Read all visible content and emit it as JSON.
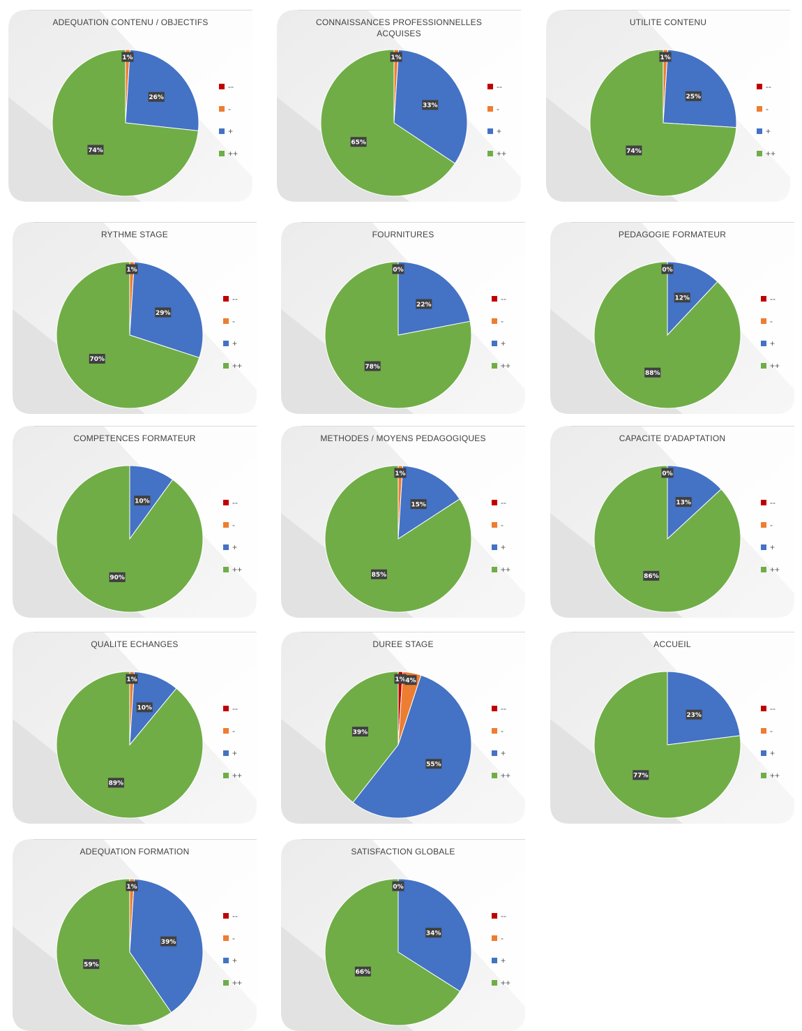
{
  "legend_entries": [
    "--",
    "-",
    "+",
    "++"
  ],
  "colors": {
    "--": "#c00000",
    "-": "#ed7d31",
    "+": "#4472c4",
    "++": "#70ad47"
  },
  "chart_data": [
    {
      "type": "pie",
      "title": "ADEQUATION CONTENU / OBJECTIFS",
      "categories": [
        "--",
        "-",
        "+",
        "++"
      ],
      "values": [
        0,
        1,
        26,
        74
      ],
      "labels": [
        "",
        "1%",
        "26%",
        "74%"
      ],
      "legend": "right"
    },
    {
      "type": "pie",
      "title": "CONNAISSANCES PROFESSIONNELLES ACQUISES",
      "title_lines": [
        "CONNAISSANCES PROFESSIONNELLES",
        "ACQUISES"
      ],
      "categories": [
        "--",
        "-",
        "+",
        "++"
      ],
      "values": [
        0,
        1,
        33,
        65
      ],
      "labels": [
        "",
        "1%",
        "33%",
        "65%"
      ],
      "legend": "right"
    },
    {
      "type": "pie",
      "title": "UTILITE CONTENU",
      "categories": [
        "--",
        "-",
        "+",
        "++"
      ],
      "values": [
        0,
        1,
        25,
        74
      ],
      "labels": [
        "",
        "1%",
        "25%",
        "74%"
      ],
      "legend": "right"
    },
    {
      "type": "pie",
      "title": "RYTHME STAGE",
      "categories": [
        "--",
        "-",
        "+",
        "++"
      ],
      "values": [
        0,
        1,
        29,
        70
      ],
      "labels": [
        "",
        "1%",
        "29%",
        "70%"
      ],
      "legend": "right"
    },
    {
      "type": "pie",
      "title": "FOURNITURES",
      "categories": [
        "--",
        "-",
        "+",
        "++"
      ],
      "values": [
        0,
        0,
        22,
        78
      ],
      "labels": [
        "",
        "0%",
        "22%",
        "78%"
      ],
      "legend": "right"
    },
    {
      "type": "pie",
      "title": "PEDAGOGIE FORMATEUR",
      "categories": [
        "--",
        "-",
        "+",
        "++"
      ],
      "values": [
        0,
        0,
        12,
        88
      ],
      "labels": [
        "",
        "0%",
        "12%",
        "88%"
      ],
      "legend": "right"
    },
    {
      "type": "pie",
      "title": "COMPETENCES FORMATEUR",
      "categories": [
        "--",
        "-",
        "+",
        "++"
      ],
      "values": [
        0,
        0,
        10,
        90
      ],
      "labels": [
        "",
        "",
        "10%",
        "90%"
      ],
      "legend": "right"
    },
    {
      "type": "pie",
      "title": "METHODES / MOYENS PEDAGOGIQUES",
      "categories": [
        "--",
        "-",
        "+",
        "++"
      ],
      "values": [
        0,
        1,
        15,
        85
      ],
      "labels": [
        "",
        "1%",
        "15%",
        "85%"
      ],
      "legend": "right"
    },
    {
      "type": "pie",
      "title": "CAPACITE D'ADAPTATION",
      "categories": [
        "--",
        "-",
        "+",
        "++"
      ],
      "values": [
        0,
        0,
        13,
        86
      ],
      "labels": [
        "",
        "0%",
        "13%",
        "86%"
      ],
      "legend": "right"
    },
    {
      "type": "pie",
      "title": "QUALITE ECHANGES",
      "categories": [
        "--",
        "-",
        "+",
        "++"
      ],
      "values": [
        0,
        1,
        10,
        89
      ],
      "labels": [
        "",
        "1%",
        "10%",
        "89%"
      ],
      "legend": "right"
    },
    {
      "type": "pie",
      "title": "DUREE STAGE",
      "categories": [
        "--",
        "-",
        "+",
        "++"
      ],
      "values": [
        1,
        4,
        55,
        39
      ],
      "labels": [
        "1%",
        "4%",
        "55%",
        "39%"
      ],
      "legend": "right"
    },
    {
      "type": "pie",
      "title": "ACCUEIL",
      "categories": [
        "--",
        "-",
        "+",
        "++"
      ],
      "values": [
        0,
        0,
        23,
        77
      ],
      "labels": [
        "",
        "",
        "23%",
        "77%"
      ],
      "legend": "right"
    },
    {
      "type": "pie",
      "title": "ADEQUATION FORMATION",
      "categories": [
        "--",
        "-",
        "+",
        "++"
      ],
      "values": [
        0,
        1,
        39,
        59
      ],
      "labels": [
        "",
        "1%",
        "39%",
        "59%"
      ],
      "legend": "right"
    },
    {
      "type": "pie",
      "title": "SATISFACTION GLOBALE",
      "categories": [
        "--",
        "-",
        "+",
        "++"
      ],
      "values": [
        0,
        0,
        34,
        66
      ],
      "labels": [
        "",
        "0%",
        "34%",
        "66%"
      ],
      "legend": "right"
    }
  ]
}
